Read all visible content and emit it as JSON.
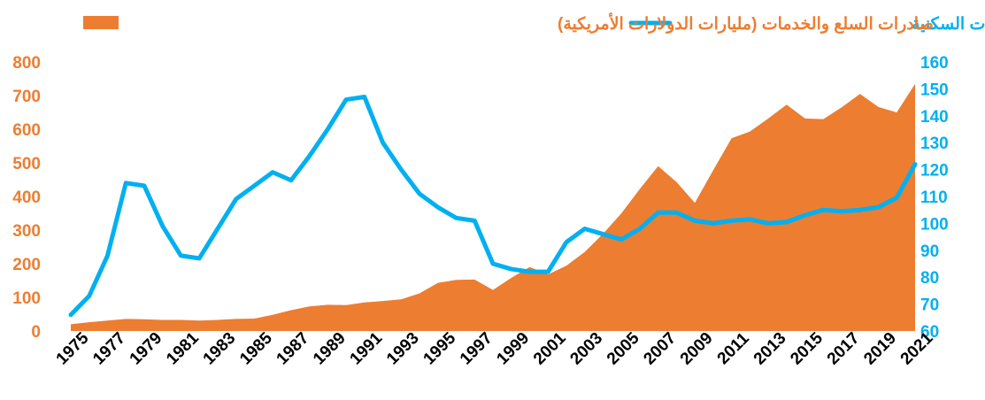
{
  "chart_data": {
    "type": "line",
    "x": [
      1975,
      1976,
      1977,
      1978,
      1979,
      1980,
      1981,
      1982,
      1983,
      1984,
      1985,
      1986,
      1987,
      1988,
      1989,
      1990,
      1991,
      1992,
      1993,
      1994,
      1995,
      1996,
      1997,
      1998,
      1999,
      2000,
      2001,
      2002,
      2003,
      2004,
      2005,
      2006,
      2007,
      2008,
      2009,
      2010,
      2011,
      2012,
      2013,
      2014,
      2015,
      2016,
      2017,
      2018,
      2019,
      2020,
      2021
    ],
    "x_tick_labels": [
      "1975",
      "1977",
      "1979",
      "1981",
      "1983",
      "1985",
      "1987",
      "1989",
      "1991",
      "1993",
      "1995",
      "1997",
      "1999",
      "2001",
      "2003",
      "2005",
      "2007",
      "2009",
      "2011",
      "2013",
      "2015",
      "2017",
      "2019",
      "2021"
    ],
    "series": [
      {
        "name": "صادرات السلع والخدمات (مليارات الدولارات الأمريكية)",
        "type": "area",
        "axis": "left",
        "color": "#ED7D31",
        "values": [
          20,
          26,
          31,
          36,
          35,
          33,
          33,
          31,
          33,
          36,
          37,
          48,
          62,
          73,
          78,
          77,
          85,
          89,
          94,
          112,
          143,
          152,
          153,
          122,
          158,
          190,
          168,
          194,
          235,
          289,
          350,
          422,
          490,
          443,
          381,
          478,
          573,
          593,
          632,
          673,
          632,
          630,
          665,
          705,
          666,
          650,
          735
        ]
      },
      {
        "name": "مؤشر أسعار العقارات السكنية",
        "type": "line",
        "axis": "right",
        "color": "#00B0F0",
        "values": [
          66,
          73,
          88,
          115,
          114,
          99,
          88,
          87,
          98,
          109,
          114,
          119,
          116,
          125,
          135,
          146,
          147,
          130,
          120,
          111,
          106,
          102,
          101,
          85,
          83,
          82,
          82,
          93,
          98,
          96,
          94,
          98,
          104,
          104,
          101,
          100,
          101,
          101.5,
          100,
          100.5,
          103,
          105,
          104.5,
          105,
          106,
          109.5,
          122
        ]
      }
    ],
    "left_axis": {
      "ylim": [
        0,
        800
      ],
      "ticks": [
        0,
        100,
        200,
        300,
        400,
        500,
        600,
        700,
        800
      ]
    },
    "right_axis": {
      "ylim": [
        60,
        160
      ],
      "ticks": [
        60,
        70,
        80,
        90,
        100,
        110,
        120,
        130,
        140,
        150,
        160
      ]
    },
    "legend": {
      "placement": "top",
      "items": [
        {
          "label": "مؤشر أسعار العقارات السكنية",
          "symbol": "line",
          "color": "#00B0F0"
        },
        {
          "label": "صادرات السلع والخدمات (مليارات الدولارات الأمريكية)",
          "symbol": "area",
          "color": "#ED7D31"
        }
      ]
    },
    "grid": false,
    "colors": {
      "left_axis_text": "#ED7D31",
      "right_axis_text": "#00B0F0",
      "x_axis_text": "#000000"
    }
  }
}
